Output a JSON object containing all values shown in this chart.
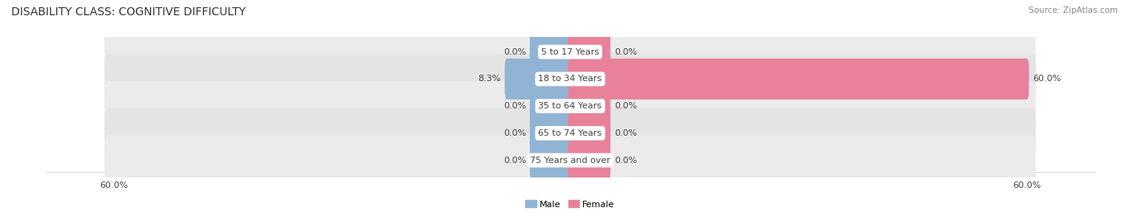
{
  "title": "DISABILITY CLASS: COGNITIVE DIFFICULTY",
  "source": "Source: ZipAtlas.com",
  "categories": [
    "5 to 17 Years",
    "18 to 34 Years",
    "35 to 64 Years",
    "65 to 74 Years",
    "75 Years and over"
  ],
  "male_values": [
    0.0,
    8.3,
    0.0,
    0.0,
    0.0
  ],
  "female_values": [
    0.0,
    60.0,
    0.0,
    0.0,
    0.0
  ],
  "max_val": 60.0,
  "default_bar_val": 5.0,
  "male_color": "#92b4d4",
  "female_color": "#e8829a",
  "male_label": "Male",
  "female_label": "Female",
  "row_bg_color_odd": "#ebebeb",
  "row_bg_color_even": "#e4e4e4",
  "center_label_bg": "#ffffff",
  "title_fontsize": 10,
  "label_fontsize": 8,
  "cat_fontsize": 8,
  "axis_label_fontsize": 8,
  "background_color": "#ffffff",
  "text_color": "#444444"
}
